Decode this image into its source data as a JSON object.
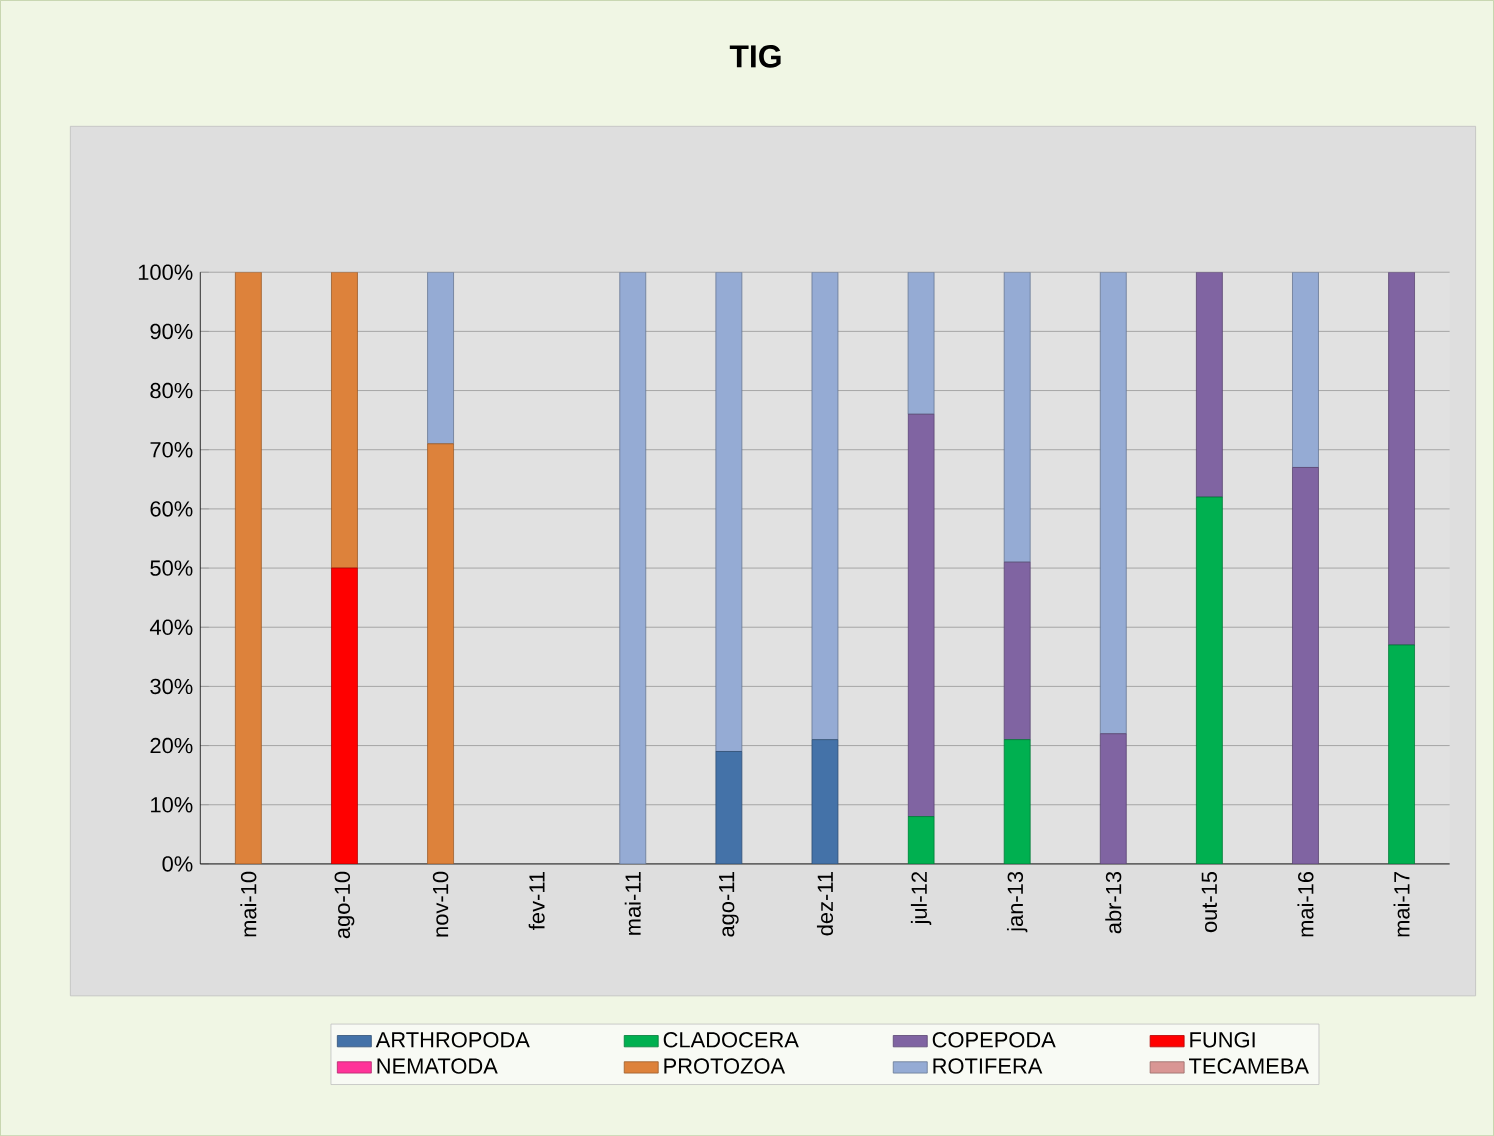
{
  "chart_data": {
    "type": "bar",
    "title": "TIG",
    "stacked": true,
    "grid": "y",
    "legend": "bottom",
    "categories": [
      "mai-10",
      "ago-10",
      "nov-10",
      "fev-11",
      "mai-11",
      "ago-11",
      "dez-11",
      "jul-12",
      "jan-13",
      "abr-13",
      "out-15",
      "mai-16",
      "mai-17"
    ],
    "series": [
      {
        "name": "ARTHROPODA",
        "color": "#4472a8",
        "values": [
          0,
          0,
          0,
          0,
          0,
          19,
          21,
          0,
          0,
          0,
          0,
          0,
          0
        ]
      },
      {
        "name": "CLADOCERA",
        "color": "#00b050",
        "values": [
          0,
          0,
          0,
          0,
          0,
          0,
          0,
          8,
          21,
          0,
          62,
          0,
          37
        ]
      },
      {
        "name": "COPEPODA",
        "color": "#8064a2",
        "values": [
          0,
          0,
          0,
          0,
          0,
          0,
          0,
          68,
          30,
          22,
          38,
          67,
          63
        ]
      },
      {
        "name": "FUNGI",
        "color": "#ff0000",
        "values": [
          0,
          50,
          0,
          0,
          0,
          0,
          0,
          0,
          0,
          0,
          0,
          0,
          0
        ]
      },
      {
        "name": "NEMATODA",
        "color": "#ff3399",
        "values": [
          0,
          0,
          0,
          0,
          0,
          0,
          0,
          0,
          0,
          0,
          0,
          0,
          0
        ]
      },
      {
        "name": "PROTOZOA",
        "color": "#dd823b",
        "values": [
          100,
          50,
          71,
          0,
          0,
          0,
          0,
          0,
          0,
          0,
          0,
          0,
          0
        ]
      },
      {
        "name": "ROTIFERA",
        "color": "#95abd4",
        "values": [
          0,
          0,
          29,
          0,
          100,
          81,
          79,
          24,
          49,
          78,
          0,
          33,
          0
        ]
      },
      {
        "name": "TECAMEBA",
        "color": "#d99694",
        "values": [
          0,
          0,
          0,
          0,
          0,
          0,
          0,
          0,
          0,
          0,
          0,
          0,
          0
        ]
      }
    ],
    "ylim": [
      0,
      100
    ],
    "yticks": [
      {
        "value": 0,
        "label": "0%"
      },
      {
        "value": 10,
        "label": "10%"
      },
      {
        "value": 20,
        "label": "20%"
      },
      {
        "value": 30,
        "label": "30%"
      },
      {
        "value": 40,
        "label": "40%"
      },
      {
        "value": 50,
        "label": "50%"
      },
      {
        "value": 60,
        "label": "60%"
      },
      {
        "value": 70,
        "label": "70%"
      },
      {
        "value": 80,
        "label": "80%"
      },
      {
        "value": 90,
        "label": "90%"
      },
      {
        "value": 100,
        "label": "100%"
      }
    ]
  }
}
